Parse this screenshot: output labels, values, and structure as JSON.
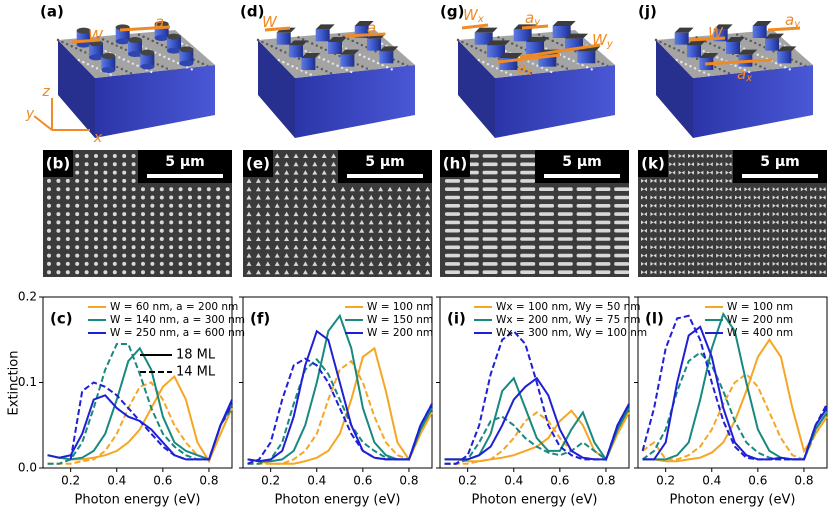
{
  "panels": [
    {
      "label": "(a)",
      "annotations": [
        {
          "text": "W"
        },
        {
          "text": "a"
        }
      ],
      "axes": [
        "z",
        "y",
        "x"
      ]
    },
    {
      "label": "(d)",
      "annotations": [
        {
          "text": "W"
        },
        {
          "text": "a"
        }
      ]
    },
    {
      "label": "(g)",
      "annotations": [
        {
          "text": "W",
          "sub": "x"
        },
        {
          "text": "a",
          "sub": "y"
        },
        {
          "text": "W",
          "sub": "y"
        },
        {
          "text": "a",
          "sub": "x"
        }
      ]
    },
    {
      "label": "(j)",
      "annotations": [
        {
          "text": "W"
        },
        {
          "text": "a",
          "sub": "y"
        },
        {
          "text": "a",
          "sub": "x"
        }
      ]
    }
  ],
  "sem": [
    {
      "label": "(b)",
      "scale_bar": "5 µm"
    },
    {
      "label": "(e)",
      "scale_bar": "5 µm"
    },
    {
      "label": "(h)",
      "scale_bar": "5 µm"
    },
    {
      "label": "(k)",
      "scale_bar": "5 µm"
    }
  ],
  "chart_data": [
    {
      "type": "line",
      "panel_label": "(c)",
      "xlabel": "Photon energy (eV)",
      "ylabel": "Extinction",
      "xlim": [
        0.08,
        0.9
      ],
      "ylim": [
        0,
        0.2
      ],
      "xticks": [
        0.2,
        0.4,
        0.6,
        0.8
      ],
      "yticks": [
        {
          "value": 0,
          "label": "0.0"
        },
        0.1,
        0.2
      ],
      "ytick_labels": true,
      "legend": "upper right",
      "x": [
        0.1,
        0.15,
        0.2,
        0.25,
        0.3,
        0.35,
        0.4,
        0.45,
        0.5,
        0.55,
        0.6,
        0.65,
        0.7,
        0.75,
        0.8,
        0.85,
        0.9
      ],
      "line_styles": [
        {
          "label": "18 ML",
          "dashed": false
        },
        {
          "label": "14 ML",
          "dashed": true
        }
      ],
      "series": [
        {
          "name": "W = 60 nm, a = 200 nm",
          "color": "#f5a623",
          "values": [
            0.015,
            0.012,
            0.01,
            0.01,
            0.012,
            0.015,
            0.02,
            0.03,
            0.045,
            0.07,
            0.095,
            0.107,
            0.08,
            0.03,
            0.008,
            0.04,
            0.07
          ],
          "values_dashed": [
            0.005,
            0.005,
            0.005,
            0.008,
            0.01,
            0.02,
            0.04,
            0.07,
            0.095,
            0.1,
            0.08,
            0.05,
            0.03,
            0.015,
            0.01,
            0.04,
            0.07
          ]
        },
        {
          "name": "W = 140 nm, a = 300 nm",
          "color": "#17897f",
          "values": [
            0.015,
            0.012,
            0.01,
            0.012,
            0.02,
            0.04,
            0.08,
            0.125,
            0.14,
            0.115,
            0.06,
            0.03,
            0.02,
            0.015,
            0.01,
            0.05,
            0.075
          ],
          "values_dashed": [
            0.005,
            0.005,
            0.01,
            0.03,
            0.07,
            0.115,
            0.145,
            0.145,
            0.11,
            0.07,
            0.04,
            0.025,
            0.015,
            0.01,
            0.01,
            0.05,
            0.07
          ]
        },
        {
          "name": "W = 250 nm, a = 600 nm",
          "color": "#1f1fd6",
          "values": [
            0.015,
            0.012,
            0.015,
            0.04,
            0.08,
            0.085,
            0.07,
            0.06,
            0.055,
            0.045,
            0.03,
            0.015,
            0.01,
            0.01,
            0.01,
            0.05,
            0.08
          ],
          "values_dashed": [
            null,
            null,
            0.01,
            0.09,
            0.1,
            0.095,
            0.085,
            0.07,
            0.055,
            0.04,
            0.025,
            0.015,
            0.01,
            0.01,
            0.01,
            0.05,
            0.075
          ]
        }
      ]
    },
    {
      "type": "line",
      "panel_label": "(f)",
      "xlabel": "Photon energy (eV)",
      "xlim": [
        0.08,
        0.9
      ],
      "ylim": [
        0,
        0.2
      ],
      "xticks": [
        0.2,
        0.4,
        0.6,
        0.8
      ],
      "yticks": [
        0,
        0.1,
        0.2
      ],
      "ytick_labels": false,
      "legend": "upper right",
      "x": [
        0.1,
        0.15,
        0.2,
        0.25,
        0.3,
        0.35,
        0.4,
        0.45,
        0.5,
        0.55,
        0.6,
        0.65,
        0.7,
        0.75,
        0.8,
        0.85,
        0.9
      ],
      "series": [
        {
          "name": "W = 100 nm",
          "color": "#f5a623",
          "values": [
            0.01,
            0.008,
            0.005,
            0.005,
            0.005,
            0.008,
            0.012,
            0.02,
            0.04,
            0.08,
            0.13,
            0.14,
            0.09,
            0.03,
            0.01,
            0.04,
            0.065
          ],
          "values_dashed": [
            0.005,
            0.005,
            0.005,
            0.005,
            0.01,
            0.02,
            0.04,
            0.08,
            0.115,
            0.125,
            0.1,
            0.06,
            0.03,
            0.015,
            0.01,
            0.04,
            0.065
          ]
        },
        {
          "name": "W = 150 nm",
          "color": "#17897f",
          "values": [
            0.01,
            0.008,
            0.008,
            0.01,
            0.02,
            0.05,
            0.1,
            0.16,
            0.178,
            0.14,
            0.07,
            0.03,
            0.015,
            0.01,
            0.01,
            0.045,
            0.07
          ],
          "values_dashed": [
            0.005,
            0.005,
            0.01,
            0.03,
            0.075,
            0.115,
            0.127,
            0.11,
            0.08,
            0.05,
            0.03,
            0.02,
            0.012,
            0.01,
            0.01,
            0.045,
            0.07
          ]
        },
        {
          "name": "W = 200 nm",
          "color": "#1f1fd6",
          "values": [
            0.01,
            0.008,
            0.01,
            0.02,
            0.06,
            0.12,
            0.16,
            0.15,
            0.1,
            0.05,
            0.02,
            0.012,
            0.01,
            0.01,
            0.01,
            0.05,
            0.075
          ],
          "values_dashed": [
            0.005,
            0.01,
            0.03,
            0.08,
            0.12,
            0.128,
            0.12,
            0.1,
            0.07,
            0.04,
            0.02,
            0.012,
            0.01,
            0.01,
            0.01,
            0.05,
            0.075
          ]
        }
      ]
    },
    {
      "type": "line",
      "panel_label": "(i)",
      "xlabel": "Photon energy (eV)",
      "xlim": [
        0.08,
        0.9
      ],
      "ylim": [
        0,
        0.2
      ],
      "xticks": [
        0.2,
        0.4,
        0.6,
        0.8
      ],
      "yticks": [
        0,
        0.1,
        0.2
      ],
      "ytick_labels": false,
      "legend": "upper right",
      "x": [
        0.1,
        0.15,
        0.2,
        0.25,
        0.3,
        0.35,
        0.4,
        0.45,
        0.5,
        0.55,
        0.6,
        0.65,
        0.7,
        0.75,
        0.8,
        0.85,
        0.9
      ],
      "series": [
        {
          "name": "Wx = 100 nm, Wy = 50 nm",
          "color": "#f5a623",
          "values": [
            0.01,
            0.01,
            0.008,
            0.008,
            0.01,
            0.012,
            0.015,
            0.02,
            0.025,
            0.035,
            0.055,
            0.067,
            0.05,
            0.02,
            0.01,
            0.04,
            0.065
          ],
          "values_dashed": [
            0.005,
            0.005,
            0.005,
            0.008,
            0.01,
            0.02,
            0.035,
            0.055,
            0.065,
            0.055,
            0.035,
            0.02,
            0.012,
            0.01,
            0.01,
            0.04,
            0.065
          ]
        },
        {
          "name": "Wx = 200 nm, Wy = 75 nm",
          "color": "#17897f",
          "values": [
            0.01,
            0.01,
            0.01,
            0.015,
            0.04,
            0.09,
            0.105,
            0.07,
            0.035,
            0.02,
            0.02,
            0.045,
            0.065,
            0.03,
            0.01,
            0.045,
            0.07
          ],
          "values_dashed": [
            0.005,
            0.005,
            0.01,
            0.03,
            0.055,
            0.06,
            0.05,
            0.035,
            0.025,
            0.018,
            0.015,
            0.02,
            0.03,
            0.02,
            0.01,
            0.045,
            0.07
          ]
        },
        {
          "name": "Wx = 300 nm, Wy = 100 nm",
          "color": "#1f1fd6",
          "values": [
            0.01,
            0.01,
            0.01,
            0.015,
            0.025,
            0.05,
            0.08,
            0.095,
            0.105,
            0.085,
            0.045,
            0.02,
            0.012,
            0.01,
            0.01,
            0.05,
            0.075
          ],
          "values_dashed": [
            0.005,
            0.005,
            0.015,
            0.05,
            0.11,
            0.15,
            0.16,
            0.145,
            0.1,
            0.05,
            0.025,
            0.015,
            0.01,
            0.01,
            0.01,
            0.05,
            0.075
          ]
        }
      ]
    },
    {
      "type": "line",
      "panel_label": "(l)",
      "xlabel": "Photon energy (eV)",
      "xlim": [
        0.08,
        0.9
      ],
      "ylim": [
        0,
        0.2
      ],
      "xticks": [
        0.2,
        0.4,
        0.6,
        0.8
      ],
      "yticks": [
        0,
        0.1,
        0.2
      ],
      "ytick_labels": false,
      "legend": "upper right",
      "x": [
        0.1,
        0.15,
        0.2,
        0.25,
        0.3,
        0.35,
        0.4,
        0.45,
        0.5,
        0.55,
        0.6,
        0.65,
        0.7,
        0.75,
        0.8,
        0.85,
        0.9
      ],
      "series": [
        {
          "name": "W = 100 nm",
          "color": "#f5a623",
          "values": [
            0.01,
            0.01,
            0.008,
            0.008,
            0.01,
            0.012,
            0.018,
            0.03,
            0.055,
            0.09,
            0.13,
            0.15,
            0.13,
            0.07,
            0.02,
            0.04,
            0.06
          ],
          "values_dashed": [
            0.02,
            0.03,
            0.01,
            0.01,
            0.015,
            0.025,
            0.045,
            0.075,
            0.1,
            0.11,
            0.095,
            0.065,
            0.035,
            0.015,
            0.01,
            0.04,
            0.06
          ]
        },
        {
          "name": "W = 200 nm",
          "color": "#17897f",
          "values": [
            0.01,
            0.01,
            0.01,
            0.015,
            0.03,
            0.08,
            0.14,
            0.18,
            0.16,
            0.1,
            0.045,
            0.02,
            0.012,
            0.01,
            0.01,
            0.045,
            0.065
          ],
          "values_dashed": [
            0.01,
            0.02,
            0.045,
            0.09,
            0.125,
            0.135,
            0.12,
            0.09,
            0.055,
            0.03,
            0.018,
            0.012,
            0.01,
            0.01,
            0.01,
            0.045,
            0.065
          ]
        },
        {
          "name": "W = 400 nm",
          "color": "#1f1fd6",
          "values": [
            0.01,
            0.01,
            0.03,
            0.1,
            0.155,
            0.165,
            0.13,
            0.07,
            0.03,
            0.015,
            0.01,
            0.01,
            0.012,
            0.01,
            0.01,
            0.05,
            0.07
          ],
          "values_dashed": [
            0.02,
            0.07,
            0.14,
            0.175,
            0.178,
            0.15,
            0.1,
            0.055,
            0.025,
            0.012,
            0.01,
            0.01,
            0.01,
            0.01,
            0.01,
            0.05,
            0.075
          ]
        }
      ]
    }
  ]
}
